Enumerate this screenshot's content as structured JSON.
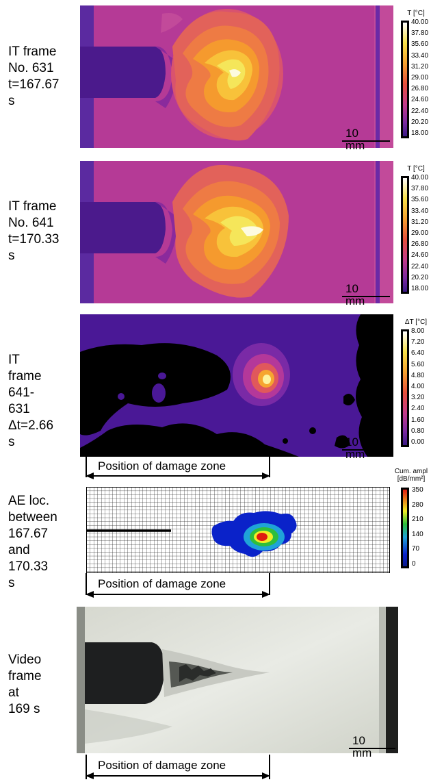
{
  "panels": [
    {
      "label": "IT frame\nNo. 631\nt=167.67 s",
      "legend_title": "T [°C]",
      "ticks": [
        "40.00",
        "37.80",
        "35.60",
        "33.40",
        "31.20",
        "29.00",
        "26.80",
        "24.60",
        "22.40",
        "20.20",
        "18.00"
      ],
      "scale_bar": "10 mm"
    },
    {
      "label": "IT frame\nNo. 641\nt=170.33 s",
      "legend_title": "T [°C]",
      "ticks": [
        "40.00",
        "37.80",
        "35.60",
        "33.40",
        "31.20",
        "29.00",
        "26.80",
        "24.60",
        "22.40",
        "20.20",
        "18.00"
      ],
      "scale_bar": "10 mm"
    },
    {
      "label": "IT frame\n641-631\nΔt=2.66 s",
      "legend_title": "ΔT [°C]",
      "ticks": [
        "8.00",
        "7.20",
        "6.40",
        "5.60",
        "4.80",
        "4.00",
        "3.20",
        "2.40",
        "1.60",
        "0.80",
        "0.00"
      ],
      "scale_bar": "10 mm"
    },
    {
      "label": "AE loc.\nbetween\n167.67 and\n170.33 s",
      "legend_title": "Cum. ampl\n[dB/mm²]",
      "ticks": [
        "350",
        "280",
        "210",
        "140",
        "70",
        "0"
      ]
    },
    {
      "label": "Video\nframe at\n169 s",
      "scale_bar": "10 mm"
    }
  ],
  "damage_zone_label": "Position of damage zone",
  "colors": {
    "thermal_bg": "#b53a96",
    "thermal_dark": "#4b1a8c",
    "ae_blue": "#0a22c9",
    "ae_red": "#e01b10"
  }
}
